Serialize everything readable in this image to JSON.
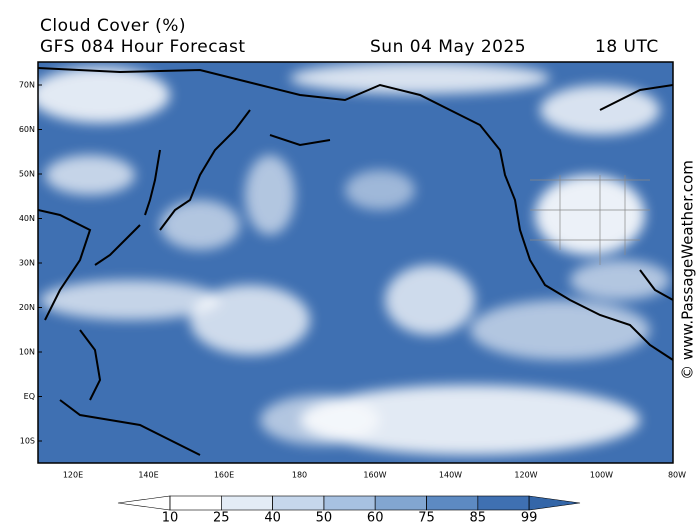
{
  "header": {
    "title": "Cloud Cover (%)",
    "subtitle": "GFS 084 Hour Forecast",
    "date": "Sun 04 May 2025",
    "time": "18 UTC"
  },
  "map": {
    "lat_labels": [
      "70N",
      "60N",
      "50N",
      "40N",
      "30N",
      "20N",
      "10N",
      "EQ",
      "10S"
    ],
    "lon_labels": [
      "120E",
      "140E",
      "160E",
      "180",
      "160W",
      "140W",
      "120W",
      "100W",
      "80W"
    ]
  },
  "colorbar": {
    "ticks": [
      10,
      25,
      40,
      50,
      60,
      75,
      85,
      99
    ],
    "colors": [
      "#ffffff",
      "#ffffff",
      "#e3ecf6",
      "#c6d7ec",
      "#a7c1e1",
      "#82a6d1",
      "#5d8ac2",
      "#3f70b2",
      "#3466a8"
    ]
  },
  "credit": "© www.PassageWeather.com"
}
